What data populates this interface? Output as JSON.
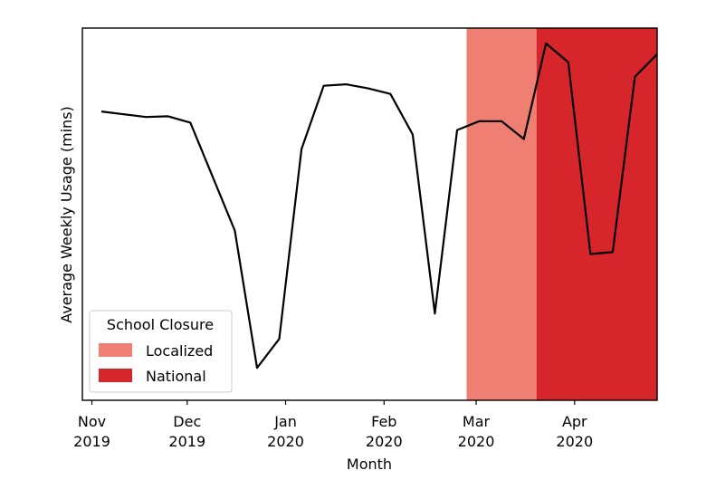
{
  "chart_data": {
    "type": "line",
    "title": "",
    "xlabel": "Month",
    "ylabel": "Average Weekly Usage (mins)",
    "y_ticks_shown": false,
    "ylim": [
      0,
      100
    ],
    "x_ticks": [
      {
        "date": "2019-11-01",
        "line1": "Nov",
        "line2": "2019"
      },
      {
        "date": "2019-12-01",
        "line1": "Dec",
        "line2": "2019"
      },
      {
        "date": "2020-01-01",
        "line1": "Jan",
        "line2": "2020"
      },
      {
        "date": "2020-02-01",
        "line1": "Feb",
        "line2": "2020"
      },
      {
        "date": "2020-03-01",
        "line1": "Mar",
        "line2": "2020"
      },
      {
        "date": "2020-04-01",
        "line1": "Apr",
        "line2": "2020"
      }
    ],
    "xlim": [
      "2019-10-29",
      "2020-04-27"
    ],
    "series": [
      {
        "color": "#000000",
        "points": [
          {
            "x": "2019-11-04",
            "y": 77.6
          },
          {
            "x": "2019-11-18",
            "y": 76.1
          },
          {
            "x": "2019-11-25",
            "y": 76.3
          },
          {
            "x": "2019-12-02",
            "y": 74.6
          },
          {
            "x": "2019-12-16",
            "y": 45.6
          },
          {
            "x": "2019-12-23",
            "y": 8.7
          },
          {
            "x": "2019-12-30",
            "y": 16.5
          },
          {
            "x": "2020-01-06",
            "y": 67.5
          },
          {
            "x": "2020-01-13",
            "y": 84.5
          },
          {
            "x": "2020-01-20",
            "y": 84.9
          },
          {
            "x": "2020-01-27",
            "y": 83.8
          },
          {
            "x": "2020-02-03",
            "y": 82.3
          },
          {
            "x": "2020-02-10",
            "y": 71.4
          },
          {
            "x": "2020-02-17",
            "y": 23.3
          },
          {
            "x": "2020-02-24",
            "y": 72.6
          },
          {
            "x": "2020-03-02",
            "y": 75.0
          },
          {
            "x": "2020-03-09",
            "y": 75.0
          },
          {
            "x": "2020-03-16",
            "y": 70.2
          },
          {
            "x": "2020-03-23",
            "y": 95.9
          },
          {
            "x": "2020-03-30",
            "y": 90.8
          },
          {
            "x": "2020-04-06",
            "y": 39.3
          },
          {
            "x": "2020-04-13",
            "y": 39.8
          },
          {
            "x": "2020-04-20",
            "y": 86.9
          },
          {
            "x": "2020-04-27",
            "y": 93.0
          }
        ]
      }
    ],
    "shaded_regions": [
      {
        "label": "Localized",
        "start": "2020-02-27",
        "end": "2020-03-20",
        "color": "#f07f73"
      },
      {
        "label": "National",
        "start": "2020-03-20",
        "end": "2020-04-27",
        "color": "#d7262b"
      }
    ],
    "legend": {
      "title": "School Closure",
      "position": "lower-left",
      "entries": [
        {
          "label": "Localized",
          "color": "#f07f73"
        },
        {
          "label": "National",
          "color": "#d7262b"
        }
      ]
    },
    "grid": false
  }
}
